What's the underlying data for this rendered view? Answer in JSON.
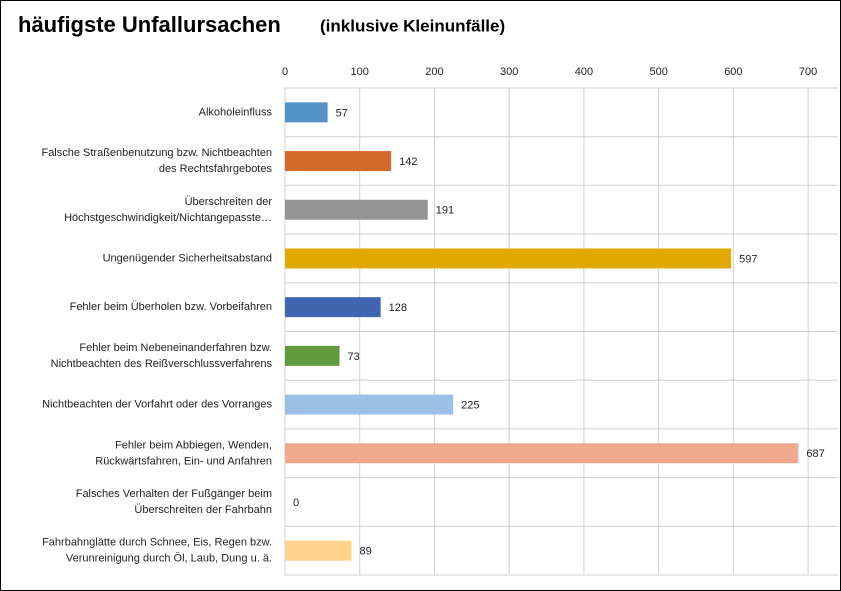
{
  "chart_data": {
    "type": "barh",
    "title": "häufigste Unfallursachen",
    "subtitle": "(inklusive Kleinunfälle)",
    "categories": [
      "Alkoholeinfluss",
      "Falsche Straßenbenutzung bzw. Nichtbeachten\ndes Rechtsfahrgebotes",
      "Überschreiten der\nHöchstgeschwindigkeit/Nichtangepasste…",
      "Ungenügender Sicherheitsabstand",
      "Fehler beim Überholen bzw. Vorbeifahren",
      "Fehler beim Nebeneinanderfahren bzw.\nNichtbeachten des Reißverschlussverfahrens",
      "Nichtbeachten der Vorfahrt oder des Vorranges",
      "Fehler beim Abbiegen, Wenden,\nRückwärtsfahren, Ein- und Anfahren",
      "Falsches Verhalten der Fußgänger beim\nÜberschreiten der Fahrbahn",
      "Fahrbahnglätte durch Schnee, Eis, Regen bzw.\nVerunreinigung durch Öl, Laub, Dung u. ä."
    ],
    "values": [
      57,
      142,
      191,
      597,
      128,
      73,
      225,
      687,
      0,
      89
    ],
    "colors": [
      "#5592c9",
      "#d4692d",
      "#959595",
      "#e0a800",
      "#4165b0",
      "#5f9b3e",
      "#9dc0e6",
      "#f0a98c",
      "#ffffff",
      "#ffd38a"
    ],
    "xlim": [
      0,
      740
    ],
    "xticks": [
      0,
      100,
      200,
      300,
      400,
      500,
      600,
      700
    ],
    "grid": true
  }
}
